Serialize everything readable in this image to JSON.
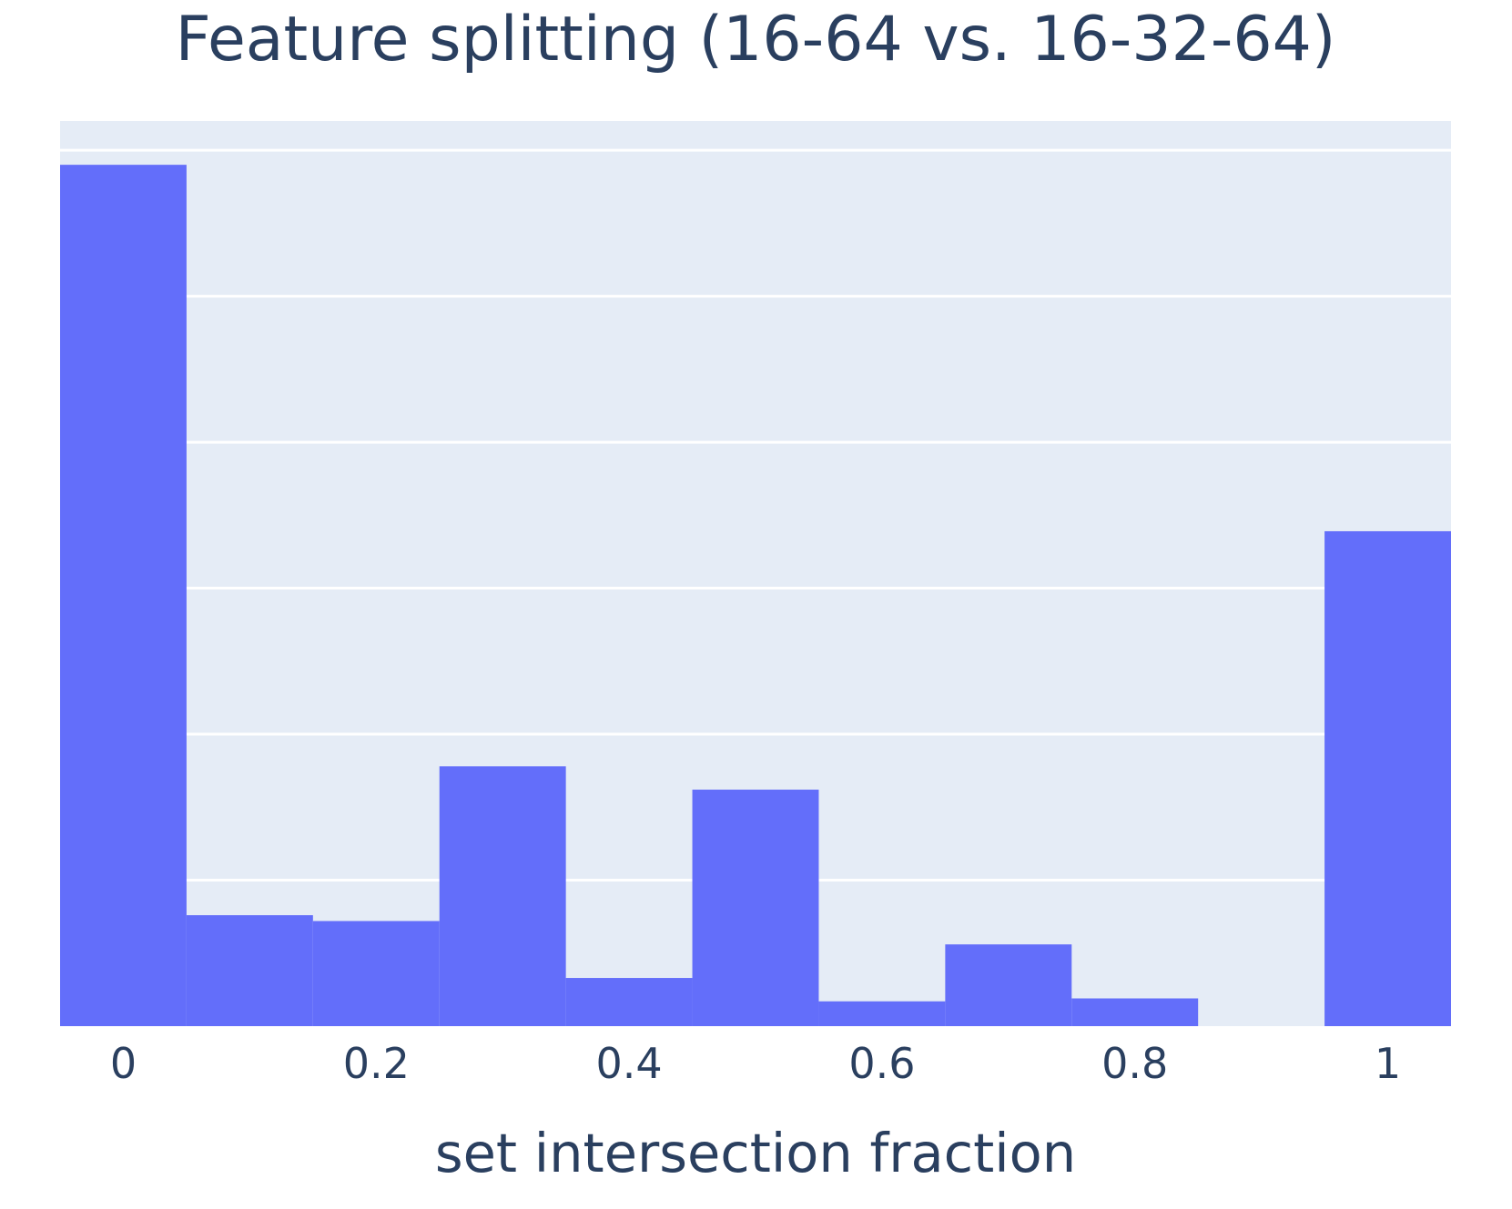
{
  "chart_data": {
    "type": "bar",
    "title": "Feature splitting (16-64 vs. 16-32-64)",
    "xlabel": "set intersection fraction",
    "ylabel": "",
    "x_range": [
      -0.05,
      1.05
    ],
    "bin_width": 0.1,
    "bins": [
      {
        "x0": -0.05,
        "x1": 0.05,
        "value": 59
      },
      {
        "x0": 0.05,
        "x1": 0.15,
        "value": 7.6
      },
      {
        "x0": 0.15,
        "x1": 0.25,
        "value": 7.2
      },
      {
        "x0": 0.25,
        "x1": 0.35,
        "value": 17.8
      },
      {
        "x0": 0.35,
        "x1": 0.45,
        "value": 3.3
      },
      {
        "x0": 0.45,
        "x1": 0.55,
        "value": 16.2
      },
      {
        "x0": 0.55,
        "x1": 0.65,
        "value": 1.7
      },
      {
        "x0": 0.65,
        "x1": 0.75,
        "value": 5.6
      },
      {
        "x0": 0.75,
        "x1": 0.85,
        "value": 1.9
      },
      {
        "x0": 0.85,
        "x1": 0.95,
        "value": 0
      },
      {
        "x0": 0.95,
        "x1": 1.05,
        "value": 33.9
      }
    ],
    "ylim": [
      0,
      62
    ],
    "y_gridlines": [
      10,
      20,
      30,
      40,
      50,
      60
    ],
    "x_ticks": [
      {
        "value": 0,
        "label": "0"
      },
      {
        "value": 0.2,
        "label": "0.2"
      },
      {
        "value": 0.4,
        "label": "0.4"
      },
      {
        "value": 0.6,
        "label": "0.6"
      },
      {
        "value": 0.8,
        "label": "0.8"
      },
      {
        "value": 1,
        "label": "1"
      }
    ],
    "show_y_tick_labels": false,
    "grid": true,
    "colors": {
      "bar": "#636efa",
      "plot_bg": "#e5ecf6",
      "grid": "#ffffff",
      "text": "#2a3f5f"
    }
  }
}
